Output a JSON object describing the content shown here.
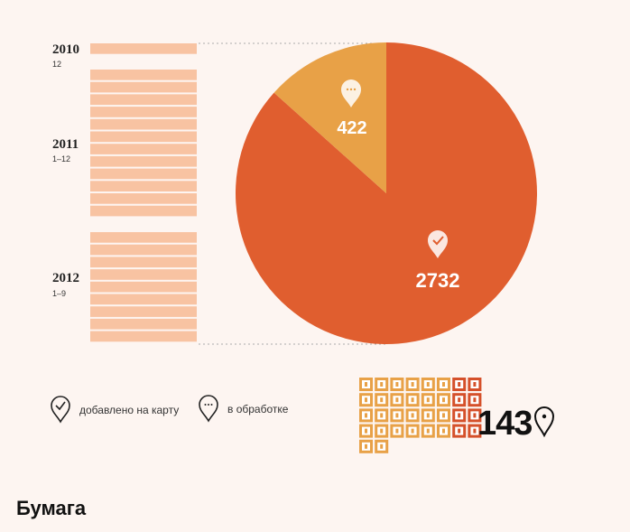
{
  "chart_data": {
    "type": "pie",
    "slices": [
      {
        "label": "2732",
        "value": 2732,
        "status": "добавлено на карту",
        "color": "#e05e2f"
      },
      {
        "label": "422",
        "value": 422,
        "status": "в обработке",
        "color": "#e8a147"
      }
    ],
    "legend": [
      {
        "label": "добавлено на карту",
        "icon": "pin-check-icon"
      },
      {
        "label": "в обработке",
        "icon": "pin-dots-icon"
      }
    ],
    "timeline": [
      {
        "year": "2010",
        "months": "12",
        "bars": 1
      },
      {
        "year": "2011",
        "months": "1–12",
        "bars": 12
      },
      {
        "year": "2012",
        "months": "1–9",
        "bars": 9
      }
    ],
    "grid_counter": {
      "value": "143",
      "icon": "pin-icon",
      "rows": 5,
      "cols": 8,
      "last_row_cells": 2,
      "dark_cols": 2,
      "colors": {
        "light": "#e8a147",
        "dark": "#d5502a"
      }
    }
  },
  "footer": {
    "brand": "Бумага"
  },
  "colors": {
    "bar": "#f8c3a2",
    "background": "#fdf5f1"
  }
}
